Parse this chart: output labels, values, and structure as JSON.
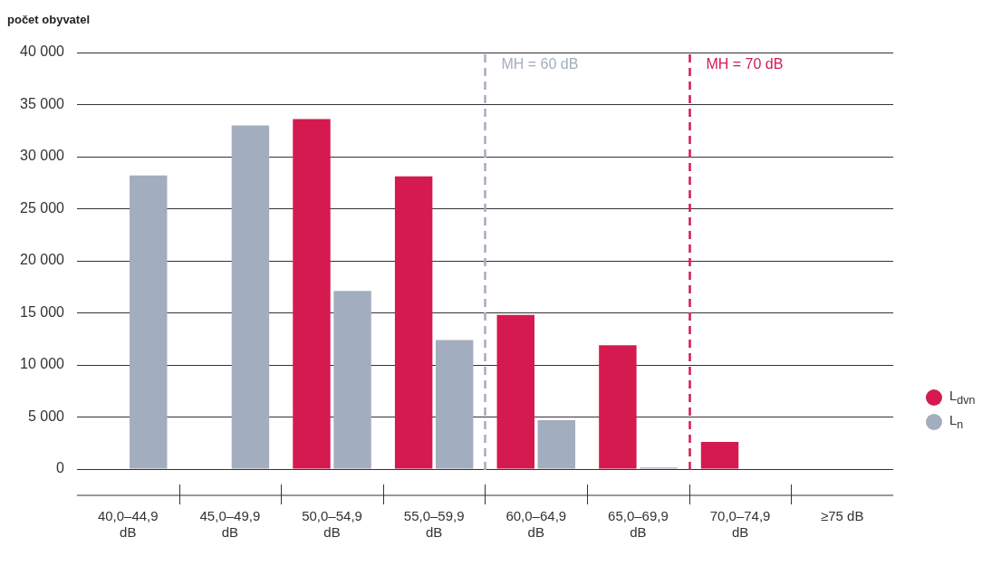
{
  "chart_data": {
    "type": "bar",
    "ylabel": "počet obyvatel",
    "categories": [
      "40,0–44,9 dB",
      "45,0–49,9 dB",
      "50,0–54,9 dB",
      "55,0–59,9 dB",
      "60,0–64,9 dB",
      "65,0–69,9 dB",
      "70,0–74,9 dB",
      "≥75 dB"
    ],
    "series": [
      {
        "name": "L$_{dvn}$",
        "color": "#d41a4f",
        "values": [
          null,
          null,
          33600,
          28100,
          14800,
          11900,
          2600,
          null
        ]
      },
      {
        "name": "L$_{n}$",
        "color": "#a3adc0",
        "values": [
          28200,
          33000,
          17100,
          12400,
          4700,
          150,
          null,
          null
        ]
      }
    ],
    "ylim": [
      0,
      40000
    ],
    "yticks": [
      {
        "value": 0,
        "label": "0"
      },
      {
        "value": 5000,
        "label": "5 000"
      },
      {
        "value": 10000,
        "label": "10 000"
      },
      {
        "value": 15000,
        "label": "15 000"
      },
      {
        "value": 20000,
        "label": "20 000"
      },
      {
        "value": 25000,
        "label": "25 000"
      },
      {
        "value": 30000,
        "label": "30 000"
      },
      {
        "value": 35000,
        "label": "35 000"
      },
      {
        "value": 40000,
        "label": "40 000"
      }
    ],
    "ref_lines": [
      {
        "axis": "x",
        "value": "60,0–64,9 dB",
        "label": "MH = 60 dB",
        "color": "#a3adc0",
        "line_style": "dashed"
      },
      {
        "axis": "x",
        "value": "70,0–74,9 dB",
        "label": "MH = 70 dB",
        "color": "#d41a4f",
        "line_style": "dashed"
      }
    ],
    "grid": "y",
    "legend": "right"
  }
}
